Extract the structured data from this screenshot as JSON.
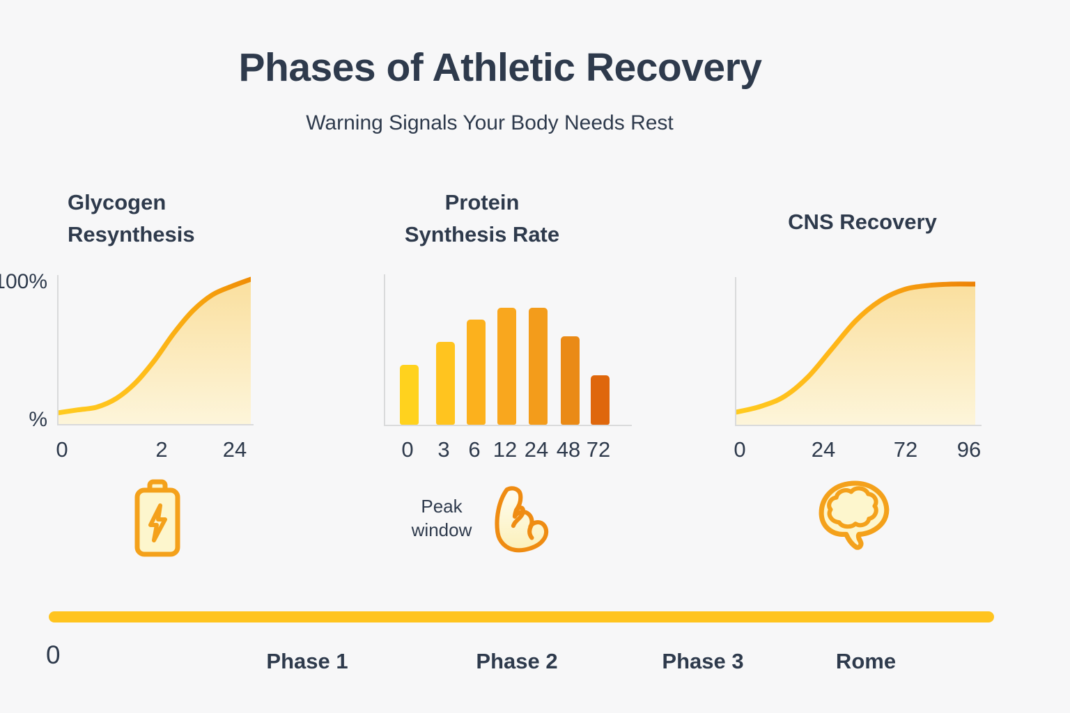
{
  "page": {
    "title": "Phases of Athletic Recovery",
    "subtitle": "Warning Signals Your Body Needs Rest"
  },
  "colors": {
    "text": "#2e3a4c",
    "background": "#f7f7f8",
    "axis": "#d9dadb",
    "curve_gradient_start": "#ffcb20",
    "curve_gradient_end": "#ef8c05",
    "area_fill_top": "#fadf9e",
    "area_fill_bottom": "#fdf5da",
    "icon_stroke": "#f4a11b",
    "icon_fill": "#fdf6cd",
    "timeline_bar": "#ffc41f"
  },
  "chart_data": [
    {
      "type": "area",
      "title": "Glycogen Resynthesis",
      "title_lines": [
        "Glycogen",
        "Resynthesis"
      ],
      "y_top_label": "100%",
      "y_bottom_label": "%",
      "x_tick_labels": [
        "0",
        "2",
        "24"
      ],
      "ylim": [
        0,
        100
      ],
      "grid": false,
      "points": [
        [
          0,
          6
        ],
        [
          0.1,
          8
        ],
        [
          0.2,
          10
        ],
        [
          0.3,
          16
        ],
        [
          0.4,
          27
        ],
        [
          0.5,
          43
        ],
        [
          0.6,
          62
        ],
        [
          0.7,
          78
        ],
        [
          0.8,
          89
        ],
        [
          0.9,
          95
        ],
        [
          1,
          100
        ]
      ],
      "points_note": "x normalized 0-1 across axis, y = percent recovered (estimated from pixels)"
    },
    {
      "type": "bar",
      "title": "Protein Synthesis Rate",
      "title_lines": [
        "Protein",
        "Synthesis Rate"
      ],
      "categories": [
        "0",
        "3",
        "6",
        "12",
        "24",
        "48",
        "72"
      ],
      "values": [
        40,
        55,
        70,
        78,
        78,
        59,
        33
      ],
      "values_note": "percent of plot height, estimated from pixels (no y-axis labels shown)",
      "bar_colors": [
        "#ffd21e",
        "#ffc41f",
        "#fcb11d",
        "#f9a71e",
        "#f39c1b",
        "#ea8a16",
        "#df670c"
      ],
      "grid": false
    },
    {
      "type": "area",
      "title": "CNS Recovery",
      "x_tick_labels": [
        "0",
        "24",
        "72",
        "96"
      ],
      "ylim": [
        0,
        100
      ],
      "grid": false,
      "points": [
        [
          0,
          7
        ],
        [
          0.1,
          11
        ],
        [
          0.2,
          18
        ],
        [
          0.3,
          32
        ],
        [
          0.4,
          52
        ],
        [
          0.5,
          72
        ],
        [
          0.6,
          86
        ],
        [
          0.7,
          94
        ],
        [
          0.8,
          97
        ],
        [
          0.9,
          98
        ],
        [
          1,
          98
        ]
      ],
      "points_note": "x normalized 0-1 across axis, y = percent recovered (estimated from pixels)"
    }
  ],
  "icons": {
    "battery": {
      "name": "battery-charging-icon"
    },
    "bicep": {
      "name": "bicep-icon",
      "label_lines": [
        "Peak",
        "window"
      ]
    },
    "brain": {
      "name": "brain-icon"
    }
  },
  "timeline": {
    "origin_label": "0",
    "labels": [
      "Phase 1",
      "Phase 2",
      "Phase 3",
      "Rome"
    ]
  }
}
